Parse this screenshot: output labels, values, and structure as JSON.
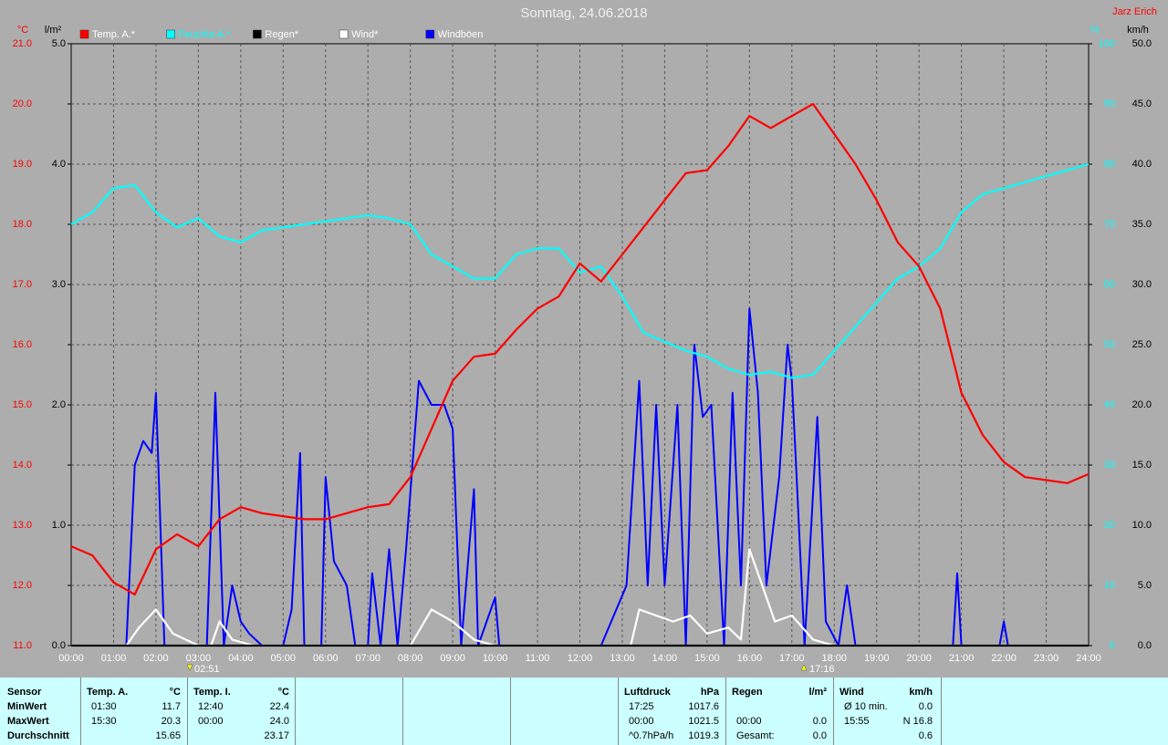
{
  "chart_data": {
    "type": "line",
    "title": "Sonntag, 24.06.2018",
    "author": "Jarz Erich",
    "axis_units": {
      "y": "°C",
      "y2": "l/m²",
      "y3": "%",
      "y4": "km/h"
    },
    "annotations": [
      "02:51",
      "17:16"
    ],
    "xlim": [
      0,
      24
    ],
    "xticks": [
      {
        "value": 0,
        "label": "00:00"
      },
      {
        "value": 1,
        "label": "01:00"
      },
      {
        "value": 2,
        "label": "02:00"
      },
      {
        "value": 3,
        "label": "03:00"
      },
      {
        "value": 4,
        "label": "04:00"
      },
      {
        "value": 5,
        "label": "05:00"
      },
      {
        "value": 6,
        "label": "06:00"
      },
      {
        "value": 7,
        "label": "07:00"
      },
      {
        "value": 8,
        "label": "08:00"
      },
      {
        "value": 9,
        "label": "09:00"
      },
      {
        "value": 10,
        "label": "10:00"
      },
      {
        "value": 11,
        "label": "11:00"
      },
      {
        "value": 12,
        "label": "12:00"
      },
      {
        "value": 13,
        "label": "13:00"
      },
      {
        "value": 14,
        "label": "14:00"
      },
      {
        "value": 15,
        "label": "15:00"
      },
      {
        "value": 16,
        "label": "16:00"
      },
      {
        "value": 17,
        "label": "17:00"
      },
      {
        "value": 18,
        "label": "18:00"
      },
      {
        "value": 19,
        "label": "19:00"
      },
      {
        "value": 20,
        "label": "20:00"
      },
      {
        "value": 21,
        "label": "21:00"
      },
      {
        "value": 22,
        "label": "22:00"
      },
      {
        "value": 23,
        "label": "23:00"
      },
      {
        "value": 24,
        "label": "24:00"
      }
    ],
    "ylim": [
      11,
      21
    ],
    "yticks": [
      {
        "value": 11,
        "label": "11.0"
      },
      {
        "value": 12,
        "label": "12.0"
      },
      {
        "value": 13,
        "label": "13.0"
      },
      {
        "value": 14,
        "label": "14.0"
      },
      {
        "value": 15,
        "label": "15.0"
      },
      {
        "value": 16,
        "label": "16.0"
      },
      {
        "value": 17,
        "label": "17.0"
      },
      {
        "value": 18,
        "label": "18.0"
      },
      {
        "value": 19,
        "label": "19.0"
      },
      {
        "value": 20,
        "label": "20.0"
      },
      {
        "value": 21,
        "label": "21.0"
      }
    ],
    "y2lim": [
      0,
      5
    ],
    "y2ticks": [
      {
        "value": 0,
        "label": "0.0"
      },
      {
        "value": 1,
        "label": "1.0"
      },
      {
        "value": 2,
        "label": "2.0"
      },
      {
        "value": 3,
        "label": "3.0"
      },
      {
        "value": 4,
        "label": "4.0"
      },
      {
        "value": 5,
        "label": "5.0"
      }
    ],
    "y3lim": [
      0,
      100
    ],
    "y3ticks": [
      0,
      10,
      20,
      30,
      40,
      50,
      60,
      70,
      80,
      90,
      100
    ],
    "y4lim": [
      0,
      50
    ],
    "y4ticks": [
      {
        "value": 0,
        "label": "0.0"
      },
      {
        "value": 5,
        "label": "5.0"
      },
      {
        "value": 10,
        "label": "10.0"
      },
      {
        "value": 15,
        "label": "15.0"
      },
      {
        "value": 20,
        "label": "20.0"
      },
      {
        "value": 25,
        "label": "25.0"
      },
      {
        "value": 30,
        "label": "30.0"
      },
      {
        "value": 35,
        "label": "35.0"
      },
      {
        "value": 40,
        "label": "40.0"
      },
      {
        "value": 45,
        "label": "45.0"
      },
      {
        "value": 50,
        "label": "50.0"
      }
    ],
    "grid": true,
    "series": [
      {
        "name": "Temp. A.*",
        "color": "#ff0000",
        "axis": "y",
        "x": [
          0,
          0.5,
          1,
          1.5,
          2,
          2.5,
          3,
          3.5,
          4,
          4.5,
          5,
          5.5,
          6,
          6.5,
          7,
          7.5,
          8,
          8.5,
          9,
          9.5,
          10,
          10.5,
          11,
          11.5,
          12,
          12.5,
          13,
          13.5,
          14,
          14.5,
          15,
          15.5,
          16,
          16.5,
          17,
          17.5,
          18,
          18.5,
          19,
          19.5,
          20,
          20.5,
          21,
          21.5,
          22,
          22.5,
          23,
          23.5,
          24
        ],
        "values": [
          12.65,
          12.5,
          12.05,
          11.85,
          12.6,
          12.85,
          12.65,
          13.1,
          13.3,
          13.2,
          13.15,
          13.1,
          13.1,
          13.2,
          13.3,
          13.35,
          13.8,
          14.6,
          15.4,
          15.8,
          15.85,
          16.25,
          16.6,
          16.8,
          17.35,
          17.05,
          17.5,
          17.95,
          18.4,
          18.85,
          18.9,
          19.3,
          19.8,
          19.6,
          19.8,
          20.0,
          19.5,
          19.0,
          18.4,
          17.7,
          17.3,
          16.6,
          15.2,
          14.5,
          14.05,
          13.8,
          13.75,
          13.7,
          13.85
        ]
      },
      {
        "name": "Feuchte A.*",
        "color": "#00ffff",
        "axis": "y3",
        "x": [
          0,
          0.5,
          1,
          1.5,
          2,
          2.5,
          3,
          3.5,
          4,
          4.5,
          5,
          5.5,
          6,
          6.5,
          7,
          7.5,
          8,
          8.5,
          9,
          9.5,
          10,
          10.5,
          11,
          11.5,
          12,
          12.5,
          13,
          13.5,
          14,
          14.5,
          15,
          15.5,
          16,
          16.5,
          17,
          17.5,
          18,
          18.5,
          19,
          19.5,
          20,
          20.5,
          21,
          21.5,
          22,
          22.5,
          23,
          23.5,
          24
        ],
        "values": [
          70,
          72,
          76,
          76.5,
          72,
          69.5,
          71,
          68,
          67,
          69,
          69.5,
          70,
          70.5,
          71,
          71.5,
          71,
          70,
          65,
          63,
          61,
          61,
          65,
          66,
          66,
          62,
          63,
          58,
          52,
          50.5,
          49,
          48,
          46,
          45,
          45.5,
          44.5,
          45,
          49,
          53,
          57,
          61,
          63,
          66,
          72,
          75,
          76,
          77,
          78,
          79,
          80
        ]
      },
      {
        "name": "Regen*",
        "color": "#000000",
        "axis": "y2",
        "x": [
          0,
          24
        ],
        "values": [
          0,
          0
        ]
      },
      {
        "name": "Wind*",
        "color": "#ffffff",
        "axis": "y4",
        "x": [
          0,
          1.3,
          1.6,
          2.0,
          2.4,
          3.0,
          3.3,
          3.5,
          3.8,
          4.3,
          8.0,
          8.5,
          9.0,
          9.5,
          10.0,
          13.2,
          13.4,
          13.8,
          14.2,
          14.6,
          15.0,
          15.5,
          15.8,
          16.0,
          16.3,
          16.6,
          17.0,
          17.5,
          18.0,
          24
        ],
        "values": [
          0,
          0,
          1.5,
          3,
          1,
          0,
          0,
          2,
          0.5,
          0,
          0,
          3,
          2,
          0.5,
          0,
          0,
          3,
          2.5,
          2,
          2.5,
          1,
          1.5,
          0.5,
          8,
          5,
          2,
          2.5,
          0.5,
          0,
          0
        ]
      },
      {
        "name": "Windböen",
        "color": "#0000ff",
        "axis": "y4",
        "x": [
          0,
          1.3,
          1.5,
          1.7,
          1.9,
          2.0,
          2.2,
          3.2,
          3.4,
          3.6,
          3.8,
          4.0,
          4.2,
          4.5,
          5.0,
          5.2,
          5.4,
          5.5,
          5.9,
          6.0,
          6.2,
          6.5,
          6.7,
          7.0,
          7.1,
          7.3,
          7.5,
          7.7,
          7.9,
          8.2,
          8.5,
          8.8,
          9.0,
          9.2,
          9.5,
          9.6,
          10.0,
          10.1,
          12.5,
          13.1,
          13.4,
          13.6,
          13.8,
          14.0,
          14.3,
          14.5,
          14.7,
          14.9,
          15.1,
          15.4,
          15.6,
          15.8,
          16.0,
          16.2,
          16.4,
          16.7,
          16.9,
          17.0,
          17.1,
          17.3,
          17.6,
          17.8,
          18.1,
          18.3,
          18.5,
          20.8,
          20.9,
          21.0,
          21.9,
          22.0,
          22.1,
          24
        ],
        "values": [
          0,
          0,
          15,
          17,
          16,
          21,
          0,
          0,
          21,
          0,
          5,
          2,
          1,
          0,
          0,
          3,
          16,
          0,
          0,
          14,
          7,
          5,
          0,
          0,
          6,
          0,
          8,
          0,
          8,
          22,
          20,
          20,
          18,
          0,
          13,
          0,
          4,
          0,
          0,
          5,
          22,
          5,
          20,
          5,
          20,
          0,
          25,
          19,
          20,
          0,
          21,
          5,
          28,
          21,
          5,
          14,
          25,
          22,
          15,
          0,
          19,
          2,
          0,
          5,
          0,
          0,
          6,
          0,
          0,
          2,
          0,
          0
        ]
      }
    ]
  },
  "table": {
    "sensor": [
      "Sensor",
      "MinWert",
      "MaxWert",
      "Durchschnitt"
    ],
    "columns": [
      {
        "header": "Temp. A.",
        "unit": "°C",
        "rows": [
          [
            "01:30",
            "11.7"
          ],
          [
            "15:30",
            "20.3"
          ],
          [
            null,
            "15.65"
          ]
        ]
      },
      {
        "header": "Temp. I.",
        "unit": "°C",
        "rows": [
          [
            "12:40",
            "22.4"
          ],
          [
            "00:00",
            "24.0"
          ],
          [
            null,
            "23.17"
          ]
        ]
      },
      {
        "header": "Luftdruck",
        "unit": "hPa",
        "rows": [
          [
            "17:25",
            "1017.6"
          ],
          [
            "00:00",
            "1021.5"
          ],
          [
            "^0.7hPa/h",
            "1019.3"
          ]
        ]
      },
      {
        "header": "Regen",
        "unit": "l/m²",
        "rows": [
          [
            null,
            null
          ],
          [
            "00:00",
            "0.0"
          ],
          [
            "Gesamt:",
            "0.0"
          ]
        ]
      },
      {
        "header": "Wind",
        "unit": "km/h",
        "rows": [
          [
            "Ø 10 min.",
            "0.0"
          ],
          [
            "15:55",
            "N 16.8"
          ],
          [
            null,
            "0.6"
          ]
        ]
      }
    ]
  }
}
